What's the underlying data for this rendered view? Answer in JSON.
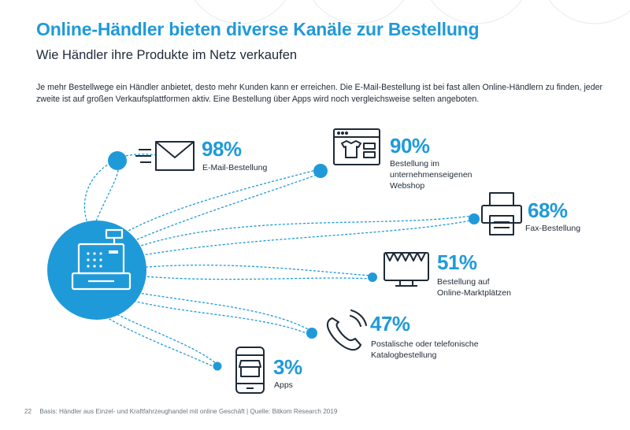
{
  "header": {
    "title": "Online-Händler bieten diverse Kanäle zur Bestellung",
    "subtitle": "Wie Händler ihre Produkte im Netz verkaufen"
  },
  "intro": {
    "text": "Je mehr Bestellwege ein Händler anbietet, desto mehr Kunden kann er erreichen. Die E-Mail-Bestellung ist bei fast allen Online-Händlern zu finden, jeder zweite ist auf großen Verkaufsplattformen aktiv. Eine Bestellung über Apps wird noch vergleichsweise selten angeboten."
  },
  "channels": [
    {
      "pct": "98%",
      "label_lines": [
        "E-Mail-Bestellung"
      ],
      "icon": "envelope-icon"
    },
    {
      "pct": "90%",
      "label_lines": [
        "Bestellung im",
        "unternehmenseigenen",
        "Webshop"
      ],
      "icon": "webshop-icon"
    },
    {
      "pct": "68%",
      "label_lines": [
        "Fax-Bestellung"
      ],
      "icon": "fax-icon"
    },
    {
      "pct": "51%",
      "label_lines": [
        "Bestellung auf",
        "Online-Marktplätzen"
      ],
      "icon": "marketplace-icon"
    },
    {
      "pct": "47%",
      "label_lines": [
        "Postalische oder telefonische",
        "Katalogbestellung"
      ],
      "icon": "phone-icon"
    },
    {
      "pct": "3%",
      "label_lines": [
        "Apps"
      ],
      "icon": "app-icon"
    }
  ],
  "footer": {
    "page": "22",
    "text": "Basis: Händler aus Einzel- und Kraftfahrzeughandel mit online Geschäft | Quelle: Bitkom Research 2019"
  },
  "colors": {
    "accent": "#1f9ad9",
    "text": "#1e2a38",
    "muted": "#6b7683"
  }
}
